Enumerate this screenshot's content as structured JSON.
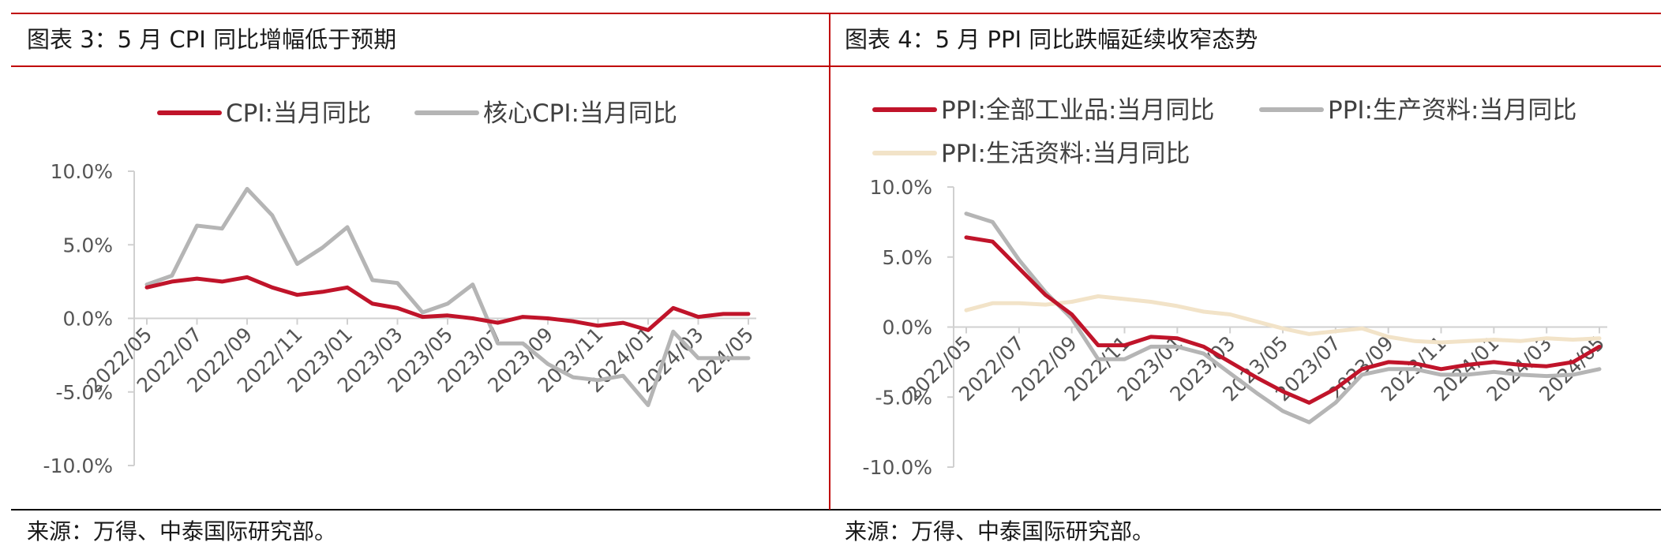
{
  "colors": {
    "accent_red": "#c00000",
    "cpi_line": "#c0142a",
    "core_line": "#b5b5b5",
    "ppi_line": "#c0142a",
    "ppi_production_line": "#b5b5b5",
    "ppi_living_line": "#f2e3c8",
    "axis": "#d0d0d0",
    "tick_text": "#555555",
    "legend_text": "#404040"
  },
  "left_panel": {
    "title": "图表 3：5 月 CPI 同比增幅低于预期",
    "source": "来源：万得、中泰国际研究部。"
  },
  "right_panel": {
    "title": "图表 4：5 月 PPI 同比跌幅延续收窄态势",
    "source": "来源：万得、中泰国际研究部。"
  },
  "chart_data": [
    {
      "type": "line",
      "title": "5 月 CPI 同比增幅低于预期",
      "ylim": [
        -10,
        10
      ],
      "yticks": [
        10,
        5,
        0,
        -5,
        -10
      ],
      "ytick_labels": [
        "10.0%",
        "5.0%",
        "0.0%",
        "-5.0%",
        "-10.0%"
      ],
      "x": [
        "2022/05",
        "2022/06",
        "2022/07",
        "2022/08",
        "2022/09",
        "2022/10",
        "2022/11",
        "2022/12",
        "2023/01",
        "2023/02",
        "2023/03",
        "2023/04",
        "2023/05",
        "2023/06",
        "2023/07",
        "2023/08",
        "2023/09",
        "2023/10",
        "2023/11",
        "2023/12",
        "2024/01",
        "2024/02",
        "2024/03",
        "2024/04",
        "2024/05"
      ],
      "xtick_labels": [
        "2022/05",
        "2022/07",
        "2022/09",
        "2022/11",
        "2023/01",
        "2023/03",
        "2023/05",
        "2023/07",
        "2023/09",
        "2023/11",
        "2024/01",
        "2024/03",
        "2024/05"
      ],
      "legend_position": "top",
      "series": [
        {
          "name": "CPI:当月同比",
          "values": [
            2.1,
            2.5,
            2.7,
            2.5,
            2.8,
            2.1,
            1.6,
            1.8,
            2.1,
            1.0,
            0.7,
            0.1,
            0.2,
            0.0,
            -0.3,
            0.1,
            0.0,
            -0.2,
            -0.5,
            -0.3,
            -0.8,
            0.7,
            0.1,
            0.3,
            0.3
          ]
        },
        {
          "name": "核心CPI:当月同比",
          "values": [
            2.3,
            2.9,
            6.3,
            6.1,
            8.8,
            7.0,
            3.7,
            4.8,
            6.2,
            2.6,
            2.4,
            0.4,
            1.0,
            2.3,
            -1.7,
            -1.7,
            -3.1,
            -4.0,
            -4.2,
            -3.9,
            -5.9,
            -0.9,
            -2.7,
            -2.7,
            -2.7
          ]
        }
      ]
    },
    {
      "type": "line",
      "title": "5 月 PPI 同比跌幅延续收窄态势",
      "ylim": [
        -10,
        10
      ],
      "yticks": [
        10,
        5,
        0,
        -5,
        -10
      ],
      "ytick_labels": [
        "10.0%",
        "5.0%",
        "0.0%",
        "-5.0%",
        "-10.0%"
      ],
      "x": [
        "2022/05",
        "2022/06",
        "2022/07",
        "2022/08",
        "2022/09",
        "2022/10",
        "2022/11",
        "2022/12",
        "2023/01",
        "2023/02",
        "2023/03",
        "2023/04",
        "2023/05",
        "2023/06",
        "2023/07",
        "2023/08",
        "2023/09",
        "2023/10",
        "2023/11",
        "2023/12",
        "2024/01",
        "2024/02",
        "2024/03",
        "2024/04",
        "2024/05"
      ],
      "xtick_labels": [
        "2022/05",
        "2022/07",
        "2022/09",
        "2022/11",
        "2023/01",
        "2023/03",
        "2023/05",
        "2023/07",
        "2023/09",
        "2023/11",
        "2024/01",
        "2024/03",
        "2024/05"
      ],
      "legend_position": "top",
      "series": [
        {
          "name": "PPI:全部工业品:当月同比",
          "values": [
            6.4,
            6.1,
            4.2,
            2.3,
            0.9,
            -1.3,
            -1.3,
            -0.7,
            -0.8,
            -1.4,
            -2.5,
            -3.6,
            -4.6,
            -5.4,
            -4.4,
            -3.0,
            -2.5,
            -2.6,
            -3.0,
            -2.7,
            -2.5,
            -2.7,
            -2.8,
            -2.5,
            -1.4
          ]
        },
        {
          "name": "PPI:生产资料:当月同比",
          "values": [
            8.1,
            7.5,
            4.8,
            2.5,
            0.6,
            -2.3,
            -2.3,
            -1.4,
            -1.4,
            -1.9,
            -3.3,
            -4.7,
            -6.0,
            -6.8,
            -5.4,
            -3.4,
            -3.0,
            -3.0,
            -3.4,
            -3.4,
            -3.2,
            -3.4,
            -3.5,
            -3.4,
            -3.0
          ]
        },
        {
          "name": "PPI:生活资料:当月同比",
          "values": [
            1.2,
            1.7,
            1.7,
            1.6,
            1.8,
            2.2,
            2.0,
            1.8,
            1.5,
            1.1,
            0.9,
            0.4,
            -0.1,
            -0.5,
            -0.3,
            -0.1,
            -0.7,
            -1.0,
            -1.1,
            -1.0,
            -0.9,
            -1.0,
            -0.8,
            -0.9,
            -0.8
          ]
        }
      ]
    }
  ]
}
